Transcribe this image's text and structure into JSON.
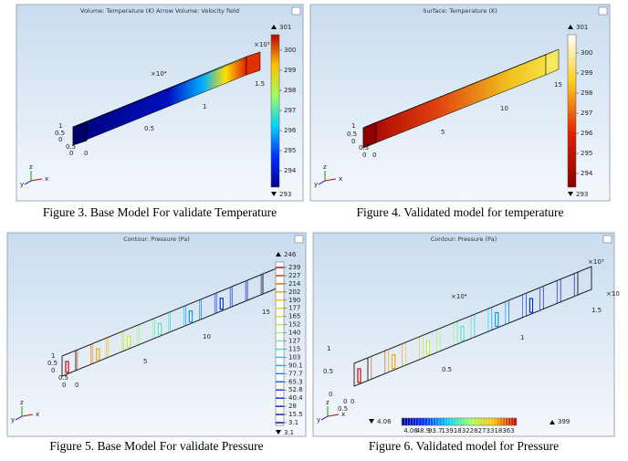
{
  "figures": [
    {
      "panel_title": "Volume: Temperature (K)  Arrow Volume: Velocity field",
      "colorbar": {
        "max": "301",
        "min": "293",
        "ticks": [
          "300",
          "299",
          "298",
          "297",
          "296",
          "295",
          "294"
        ]
      },
      "axis_labels": [
        "×10³",
        "×10⁴",
        "1.5",
        "1",
        "0.5",
        "1",
        "0.5",
        "0",
        "0",
        "0.5",
        "0"
      ],
      "triad": [
        "x",
        "y",
        "z"
      ],
      "caption": "Figure 3. Base Model For validate Temperature"
    },
    {
      "panel_title": "Surface: Temperature (K)",
      "colorbar": {
        "max": "301",
        "min": "293",
        "ticks": [
          "300",
          "299",
          "298",
          "297",
          "296",
          "295",
          "294"
        ]
      },
      "axis_labels": [
        "15",
        "10",
        "5",
        "1",
        "0.5",
        "0",
        "0",
        "0.5",
        "0"
      ],
      "triad": [
        "x",
        "y",
        "z"
      ],
      "caption": "Figure 4. Validated model for temperature"
    },
    {
      "panel_title": "Contour: Pressure (Pa)",
      "colorbar": {
        "max": "246",
        "min": "3.1",
        "ticks": [
          "239",
          "227",
          "214",
          "202",
          "190",
          "177",
          "165",
          "152",
          "140",
          "127",
          "115",
          "103",
          "90.1",
          "77.7",
          "65.3",
          "52.8",
          "40.4",
          "28",
          "15.5",
          "3.1"
        ]
      },
      "axis_labels": [
        "15",
        "10",
        "5",
        "1",
        "0.5",
        "0",
        "0",
        "0.5",
        "0"
      ],
      "triad": [
        "x",
        "y",
        "z"
      ],
      "caption": "Figure 5. Base Model For validate Pressure"
    },
    {
      "panel_title": "Contour: Pressure (Pa)",
      "colorbar": {
        "max": "399",
        "min": "4.06",
        "ticks": [
          "4.06",
          "48.9",
          "93.7",
          "139",
          "183",
          "228",
          "273",
          "318",
          "363"
        ]
      },
      "axis_labels": [
        "×10³",
        "×10⁴",
        "×10",
        "1.5",
        "1",
        "0.5",
        "1",
        "0.5",
        "0",
        "0",
        "0.5",
        "0"
      ],
      "triad": [
        "x",
        "y",
        "z"
      ],
      "caption": "Figure 6. Validated model for Pressure"
    }
  ]
}
